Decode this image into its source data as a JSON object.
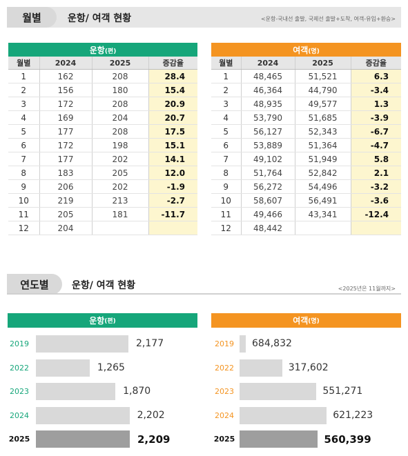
{
  "monthly": {
    "badge": "월별",
    "title": "운항/ 여객 현황",
    "note": "<운항-국내선 출발, 국제선 출발+도착, 여객-유입+환승>"
  },
  "yearly": {
    "badge": "연도별",
    "title": "운항/ 여객 현황",
    "note": "<2025년은 11월까지>"
  },
  "colors": {
    "flights": "#16a67a",
    "passengers": "#f49421",
    "year_text_flights": "#16a67a",
    "year_text_passengers": "#f49421",
    "highlight_bg": "#fdf6cf"
  },
  "chart_data": [
    {
      "type": "table",
      "title": "운항",
      "unit": "(편)",
      "columns": [
        "월별",
        "2024",
        "2025",
        "증감율"
      ],
      "rows": [
        [
          "1",
          "162",
          "208",
          "28.4"
        ],
        [
          "2",
          "156",
          "180",
          "15.4"
        ],
        [
          "3",
          "172",
          "208",
          "20.9"
        ],
        [
          "4",
          "169",
          "204",
          "20.7"
        ],
        [
          "5",
          "177",
          "208",
          "17.5"
        ],
        [
          "6",
          "172",
          "198",
          "15.1"
        ],
        [
          "7",
          "177",
          "202",
          "14.1"
        ],
        [
          "8",
          "183",
          "205",
          "12.0"
        ],
        [
          "9",
          "206",
          "202",
          "-1.9"
        ],
        [
          "10",
          "219",
          "213",
          "-2.7"
        ],
        [
          "11",
          "205",
          "181",
          "-11.7"
        ],
        [
          "12",
          "204",
          "",
          ""
        ]
      ]
    },
    {
      "type": "table",
      "title": "여객",
      "unit": "(명)",
      "columns": [
        "월별",
        "2024",
        "2025",
        "증감율"
      ],
      "rows": [
        [
          "1",
          "48,465",
          "51,521",
          "6.3"
        ],
        [
          "2",
          "46,364",
          "44,790",
          "-3.4"
        ],
        [
          "3",
          "48,935",
          "49,577",
          "1.3"
        ],
        [
          "4",
          "53,790",
          "51,685",
          "-3.9"
        ],
        [
          "5",
          "56,127",
          "52,343",
          "-6.7"
        ],
        [
          "6",
          "53,889",
          "51,364",
          "-4.7"
        ],
        [
          "7",
          "49,102",
          "51,949",
          "5.8"
        ],
        [
          "8",
          "51,764",
          "52,842",
          "2.1"
        ],
        [
          "9",
          "56,272",
          "54,496",
          "-3.2"
        ],
        [
          "10",
          "58,607",
          "56,491",
          "-3.6"
        ],
        [
          "11",
          "49,466",
          "43,341",
          "-12.4"
        ],
        [
          "12",
          "48,442",
          "",
          ""
        ]
      ]
    },
    {
      "type": "bar",
      "title": "운항",
      "unit": "(편)",
      "orientation": "horizontal",
      "categories": [
        "2019",
        "2022",
        "2023",
        "2024",
        "2025"
      ],
      "values": [
        2177,
        1265,
        1870,
        2202,
        2209
      ],
      "labels": [
        "2,177",
        "1,265",
        "1,870",
        "2,202",
        "2,209"
      ],
      "highlight": "2025"
    },
    {
      "type": "bar",
      "title": "여객",
      "unit": "(명)",
      "orientation": "horizontal",
      "categories": [
        "2019",
        "2022",
        "2023",
        "2024",
        "2025"
      ],
      "values": [
        684832,
        317602,
        551271,
        621223,
        560399
      ],
      "labels": [
        "684,832",
        "317,602",
        "551,271",
        "621,223",
        "560,399"
      ],
      "highlight": "2025"
    }
  ]
}
